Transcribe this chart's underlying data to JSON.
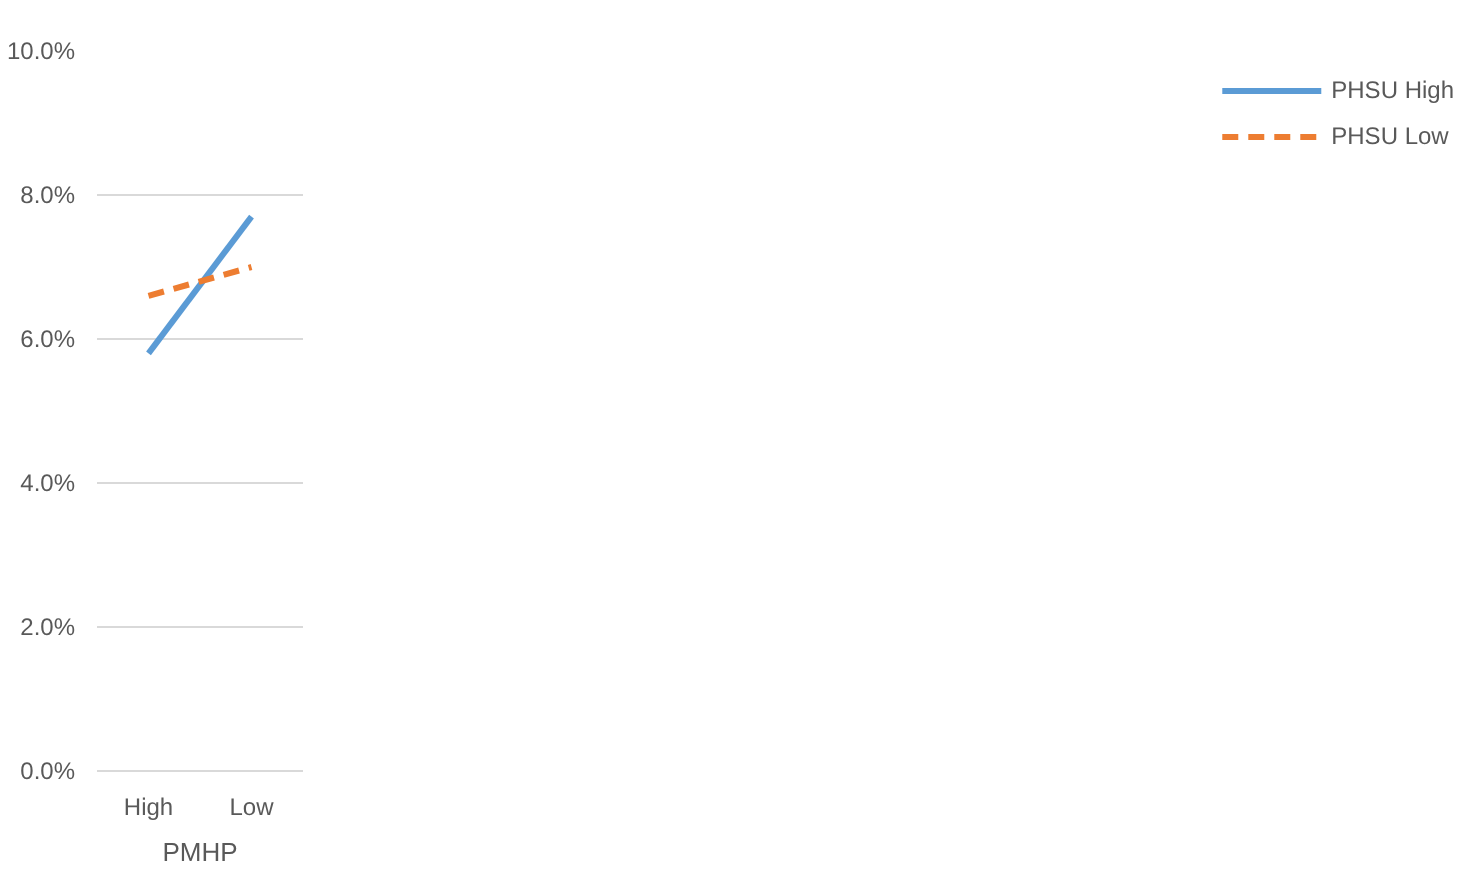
{
  "chart_data": {
    "type": "line",
    "xlabel": "PMHP",
    "categories": [
      "High",
      "Low"
    ],
    "series": [
      {
        "name": "PHSU High",
        "color": "#5b9bd5",
        "values": [
          5.8,
          7.7
        ],
        "line_style": "solid"
      },
      {
        "name": "PHSU Low",
        "color": "#ed7d31",
        "values": [
          6.6,
          7.0
        ],
        "line_style": "dashed"
      }
    ],
    "ylim": [
      0,
      10
    ],
    "yticks": [
      {
        "value": 0,
        "label": "0.0%"
      },
      {
        "value": 2,
        "label": "2.0%"
      },
      {
        "value": 4,
        "label": "4.0%"
      },
      {
        "value": 6,
        "label": "6.0%"
      },
      {
        "value": 8,
        "label": "8.0%"
      },
      {
        "value": 10,
        "label": "10.0%"
      }
    ],
    "grid": "y",
    "legend": "right",
    "marker": "none"
  }
}
